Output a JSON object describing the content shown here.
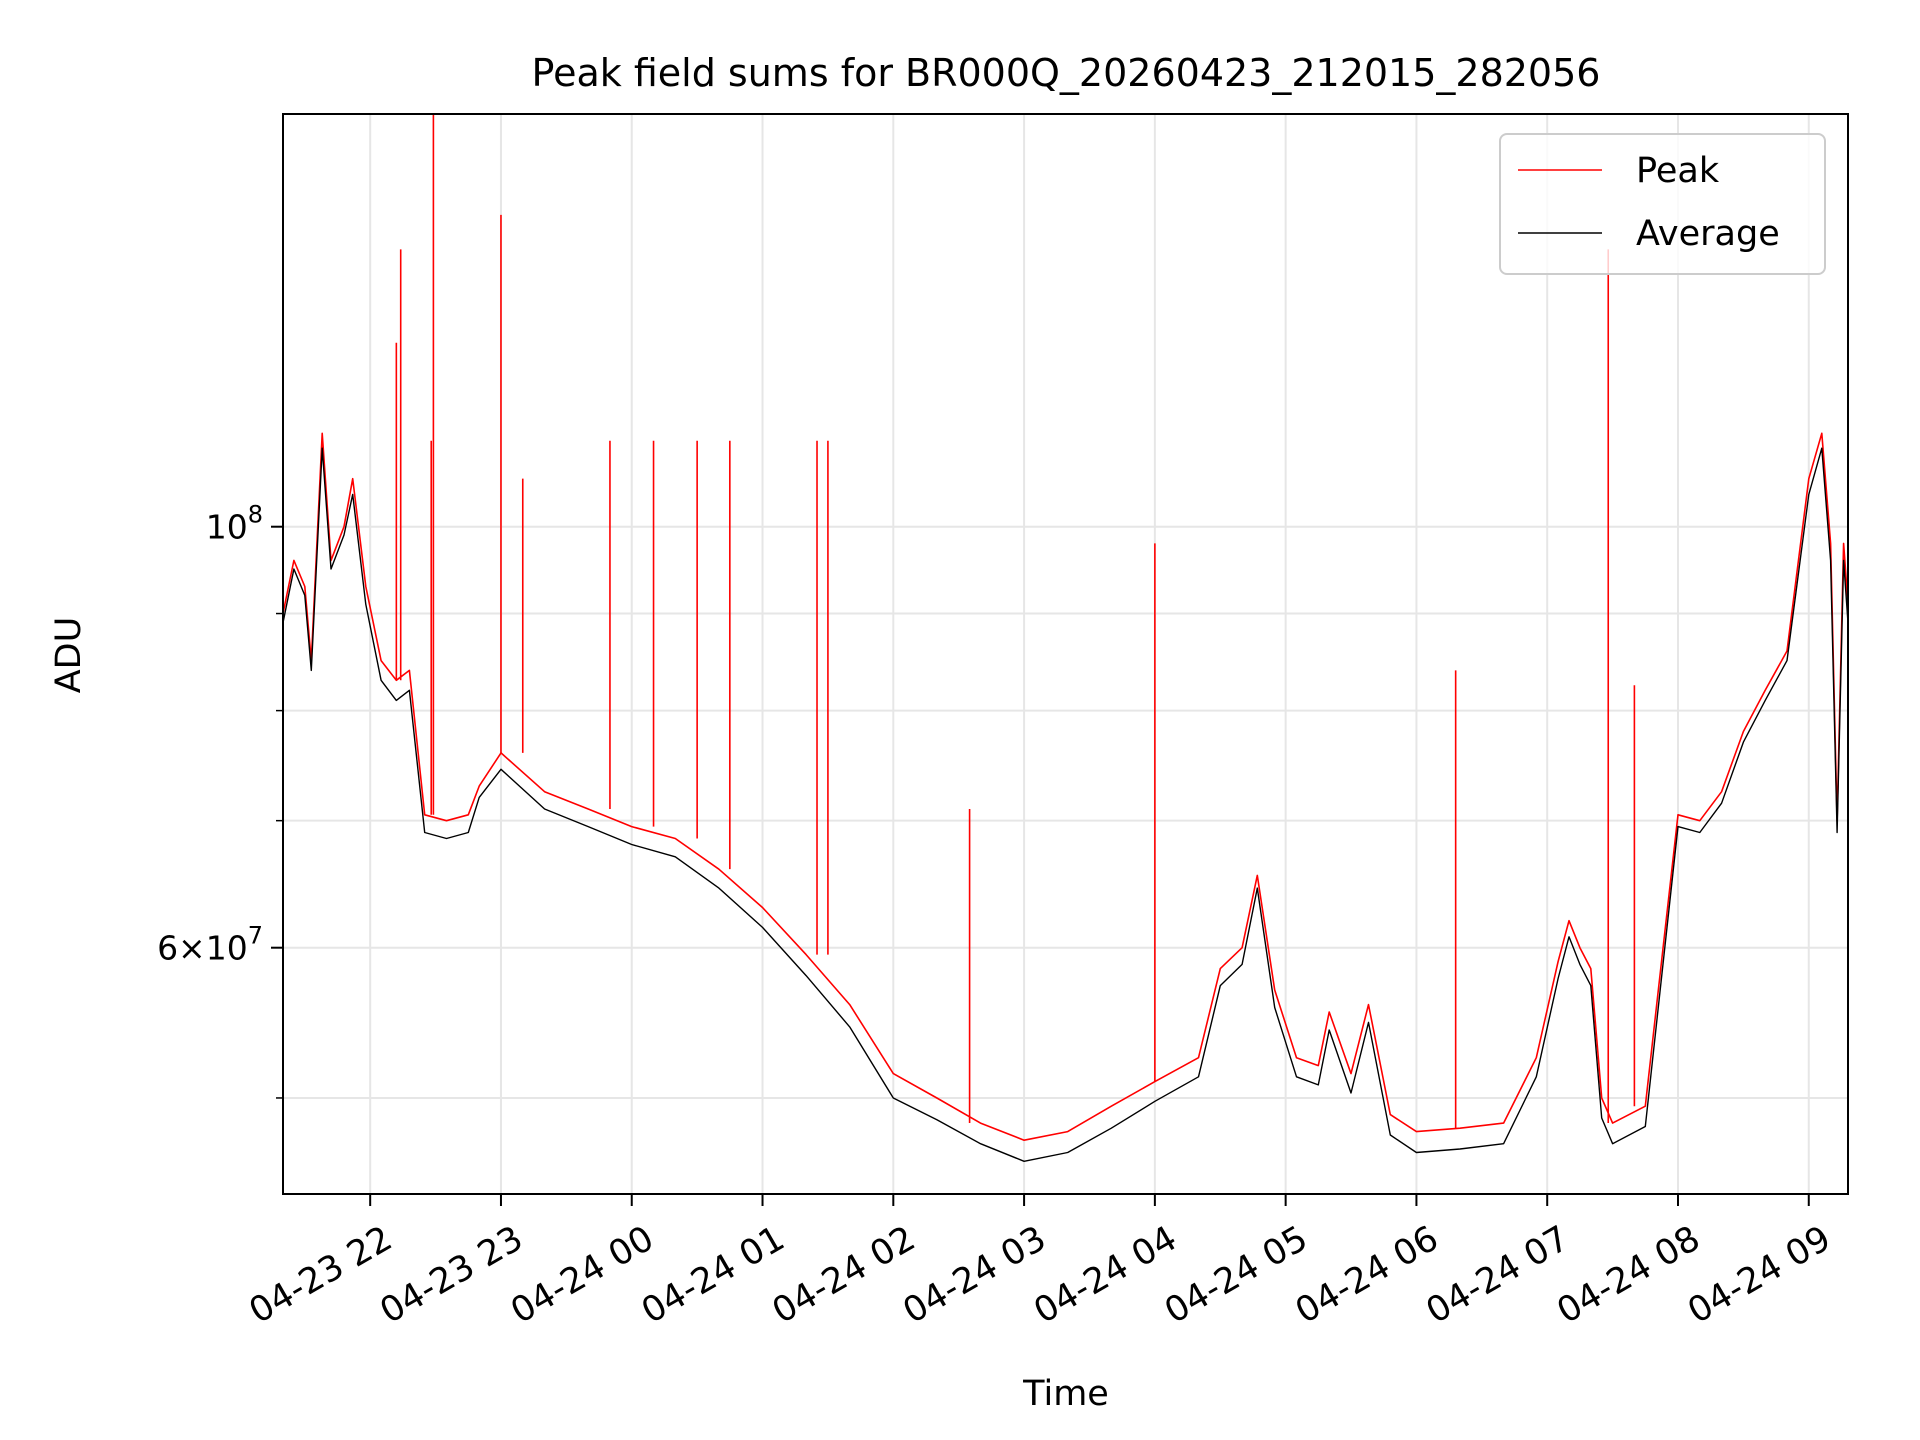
{
  "chart_data": {
    "type": "line",
    "title": "Peak field sums for BR000Q_20260423_212015_282056",
    "xlabel": "Time",
    "ylabel": "ADU",
    "y_scale": "log",
    "ylim": [
      44500000,
      165000000
    ],
    "xlim": [
      "2026-04-23 21:20",
      "2026-04-24 09:18"
    ],
    "grid": true,
    "legend_position": "upper-right",
    "x_ticks": [
      {
        "t": "2026-04-23 22:00",
        "label": "04-23 22"
      },
      {
        "t": "2026-04-23 23:00",
        "label": "04-23 23"
      },
      {
        "t": "2026-04-24 00:00",
        "label": "04-24 00"
      },
      {
        "t": "2026-04-24 01:00",
        "label": "04-24 01"
      },
      {
        "t": "2026-04-24 02:00",
        "label": "04-24 02"
      },
      {
        "t": "2026-04-24 03:00",
        "label": "04-24 03"
      },
      {
        "t": "2026-04-24 04:00",
        "label": "04-24 04"
      },
      {
        "t": "2026-04-24 05:00",
        "label": "04-24 05"
      },
      {
        "t": "2026-04-24 06:00",
        "label": "04-24 06"
      },
      {
        "t": "2026-04-24 07:00",
        "label": "04-24 07"
      },
      {
        "t": "2026-04-24 08:00",
        "label": "04-24 08"
      },
      {
        "t": "2026-04-24 09:00",
        "label": "04-24 09"
      }
    ],
    "y_major_ticks": [
      {
        "value": 60000000,
        "mantissa": "6",
        "base": "10",
        "exp": "7"
      },
      {
        "value": 100000000,
        "mantissa": "",
        "base": "10",
        "exp": "8"
      }
    ],
    "y_minor_ticks": [
      50000000,
      70000000,
      80000000,
      90000000
    ],
    "series": [
      {
        "name": "Peak",
        "color": "#ff0000",
        "points": [
          [
            "2026-04-23 21:20",
            90000000
          ],
          [
            "2026-04-23 21:25",
            96000000
          ],
          [
            "2026-04-23 21:30",
            93000000
          ],
          [
            "2026-04-23 21:33",
            85000000
          ],
          [
            "2026-04-23 21:38",
            112000000
          ],
          [
            "2026-04-23 21:42",
            96000000
          ],
          [
            "2026-04-23 21:48",
            100000000
          ],
          [
            "2026-04-23 21:52",
            106000000
          ],
          [
            "2026-04-23 21:58",
            93000000
          ],
          [
            "2026-04-23 22:05",
            85000000
          ],
          [
            "2026-04-23 22:12",
            83000000
          ],
          [
            "2026-04-23 22:18",
            84000000
          ],
          [
            "2026-04-23 22:25",
            70500000
          ],
          [
            "2026-04-23 22:35",
            70000000
          ],
          [
            "2026-04-23 22:45",
            70500000
          ],
          [
            "2026-04-23 22:50",
            73000000
          ],
          [
            "2026-04-23 23:00",
            76000000
          ],
          [
            "2026-04-23 23:20",
            72500000
          ],
          [
            "2026-04-23 23:40",
            71000000
          ],
          [
            "2026-04-24 00:00",
            69500000
          ],
          [
            "2026-04-24 00:20",
            68500000
          ],
          [
            "2026-04-24 00:40",
            66000000
          ],
          [
            "2026-04-24 01:00",
            63000000
          ],
          [
            "2026-04-24 01:20",
            59500000
          ],
          [
            "2026-04-24 01:40",
            56000000
          ],
          [
            "2026-04-24 02:00",
            51500000
          ],
          [
            "2026-04-24 02:20",
            50000000
          ],
          [
            "2026-04-24 02:40",
            48500000
          ],
          [
            "2026-04-24 03:00",
            47500000
          ],
          [
            "2026-04-24 03:20",
            48000000
          ],
          [
            "2026-04-24 03:40",
            49500000
          ],
          [
            "2026-04-24 04:00",
            51000000
          ],
          [
            "2026-04-24 04:20",
            52500000
          ],
          [
            "2026-04-24 04:30",
            58500000
          ],
          [
            "2026-04-24 04:40",
            60000000
          ],
          [
            "2026-04-24 04:47",
            65500000
          ],
          [
            "2026-04-24 04:55",
            57000000
          ],
          [
            "2026-04-24 05:05",
            52500000
          ],
          [
            "2026-04-24 05:15",
            52000000
          ],
          [
            "2026-04-24 05:20",
            55500000
          ],
          [
            "2026-04-24 05:30",
            51500000
          ],
          [
            "2026-04-24 05:38",
            56000000
          ],
          [
            "2026-04-24 05:48",
            49000000
          ],
          [
            "2026-04-24 06:00",
            48000000
          ],
          [
            "2026-04-24 06:20",
            48200000
          ],
          [
            "2026-04-24 06:40",
            48500000
          ],
          [
            "2026-04-24 06:55",
            52500000
          ],
          [
            "2026-04-24 07:05",
            59000000
          ],
          [
            "2026-04-24 07:10",
            62000000
          ],
          [
            "2026-04-24 07:15",
            60000000
          ],
          [
            "2026-04-24 07:20",
            58500000
          ],
          [
            "2026-04-24 07:25",
            50000000
          ],
          [
            "2026-04-24 07:30",
            48500000
          ],
          [
            "2026-04-24 07:45",
            49500000
          ],
          [
            "2026-04-24 08:00",
            70500000
          ],
          [
            "2026-04-24 08:10",
            70000000
          ],
          [
            "2026-04-24 08:20",
            72500000
          ],
          [
            "2026-04-24 08:30",
            78000000
          ],
          [
            "2026-04-24 08:40",
            82000000
          ],
          [
            "2026-04-24 08:50",
            86000000
          ],
          [
            "2026-04-24 09:00",
            106000000
          ],
          [
            "2026-04-24 09:06",
            112000000
          ],
          [
            "2026-04-24 09:10",
            98000000
          ],
          [
            "2026-04-24 09:13",
            70000000
          ],
          [
            "2026-04-24 09:16",
            98000000
          ],
          [
            "2026-04-24 09:18",
            91000000
          ]
        ],
        "spikes": [
          [
            "2026-04-23 22:12",
            125000000
          ],
          [
            "2026-04-23 22:14",
            140000000
          ],
          [
            "2026-04-23 22:28",
            111000000
          ],
          [
            "2026-04-23 22:29",
            165000000
          ],
          [
            "2026-04-23 23:00",
            146000000
          ],
          [
            "2026-04-23 23:10",
            106000000
          ],
          [
            "2026-04-23 23:50",
            111000000
          ],
          [
            "2026-04-24 00:10",
            111000000
          ],
          [
            "2026-04-24 00:30",
            111000000
          ],
          [
            "2026-04-24 00:45",
            111000000
          ],
          [
            "2026-04-24 01:25",
            111000000
          ],
          [
            "2026-04-24 01:30",
            111000000
          ],
          [
            "2026-04-24 02:35",
            71000000
          ],
          [
            "2026-04-24 04:00",
            98000000
          ],
          [
            "2026-04-24 06:18",
            84000000
          ],
          [
            "2026-04-24 07:28",
            140000000
          ],
          [
            "2026-04-24 07:40",
            82500000
          ]
        ]
      },
      {
        "name": "Average",
        "color": "#000000",
        "points": [
          [
            "2026-04-23 21:20",
            89000000
          ],
          [
            "2026-04-23 21:25",
            95000000
          ],
          [
            "2026-04-23 21:30",
            92000000
          ],
          [
            "2026-04-23 21:33",
            84000000
          ],
          [
            "2026-04-23 21:38",
            110000000
          ],
          [
            "2026-04-23 21:42",
            95000000
          ],
          [
            "2026-04-23 21:48",
            99000000
          ],
          [
            "2026-04-23 21:52",
            104000000
          ],
          [
            "2026-04-23 21:58",
            91000000
          ],
          [
            "2026-04-23 22:05",
            83000000
          ],
          [
            "2026-04-23 22:12",
            81000000
          ],
          [
            "2026-04-23 22:18",
            82000000
          ],
          [
            "2026-04-23 22:25",
            69000000
          ],
          [
            "2026-04-23 22:35",
            68500000
          ],
          [
            "2026-04-23 22:45",
            69000000
          ],
          [
            "2026-04-23 22:50",
            72000000
          ],
          [
            "2026-04-23 23:00",
            74500000
          ],
          [
            "2026-04-23 23:20",
            71000000
          ],
          [
            "2026-04-23 23:40",
            69500000
          ],
          [
            "2026-04-24 00:00",
            68000000
          ],
          [
            "2026-04-24 00:20",
            67000000
          ],
          [
            "2026-04-24 00:40",
            64500000
          ],
          [
            "2026-04-24 01:00",
            61500000
          ],
          [
            "2026-04-24 01:20",
            58000000
          ],
          [
            "2026-04-24 01:40",
            54500000
          ],
          [
            "2026-04-24 02:00",
            50000000
          ],
          [
            "2026-04-24 02:20",
            48700000
          ],
          [
            "2026-04-24 02:40",
            47300000
          ],
          [
            "2026-04-24 03:00",
            46300000
          ],
          [
            "2026-04-24 03:20",
            46800000
          ],
          [
            "2026-04-24 03:40",
            48200000
          ],
          [
            "2026-04-24 04:00",
            49800000
          ],
          [
            "2026-04-24 04:20",
            51300000
          ],
          [
            "2026-04-24 04:30",
            57300000
          ],
          [
            "2026-04-24 04:40",
            58800000
          ],
          [
            "2026-04-24 04:47",
            64500000
          ],
          [
            "2026-04-24 04:55",
            55800000
          ],
          [
            "2026-04-24 05:05",
            51300000
          ],
          [
            "2026-04-24 05:15",
            50800000
          ],
          [
            "2026-04-24 05:20",
            54300000
          ],
          [
            "2026-04-24 05:30",
            50300000
          ],
          [
            "2026-04-24 05:38",
            54800000
          ],
          [
            "2026-04-24 05:48",
            47800000
          ],
          [
            "2026-04-24 06:00",
            46800000
          ],
          [
            "2026-04-24 06:20",
            47000000
          ],
          [
            "2026-04-24 06:40",
            47300000
          ],
          [
            "2026-04-24 06:55",
            51300000
          ],
          [
            "2026-04-24 07:05",
            57800000
          ],
          [
            "2026-04-24 07:10",
            60800000
          ],
          [
            "2026-04-24 07:15",
            58800000
          ],
          [
            "2026-04-24 07:20",
            57300000
          ],
          [
            "2026-04-24 07:25",
            48800000
          ],
          [
            "2026-04-24 07:30",
            47300000
          ],
          [
            "2026-04-24 07:45",
            48300000
          ],
          [
            "2026-04-24 08:00",
            69500000
          ],
          [
            "2026-04-24 08:10",
            69000000
          ],
          [
            "2026-04-24 08:20",
            71500000
          ],
          [
            "2026-04-24 08:30",
            77000000
          ],
          [
            "2026-04-24 08:40",
            81000000
          ],
          [
            "2026-04-24 08:50",
            85000000
          ],
          [
            "2026-04-24 09:00",
            104000000
          ],
          [
            "2026-04-24 09:06",
            110000000
          ],
          [
            "2026-04-24 09:10",
            96000000
          ],
          [
            "2026-04-24 09:13",
            69000000
          ],
          [
            "2026-04-24 09:16",
            96000000
          ],
          [
            "2026-04-24 09:18",
            89000000
          ]
        ]
      }
    ]
  }
}
